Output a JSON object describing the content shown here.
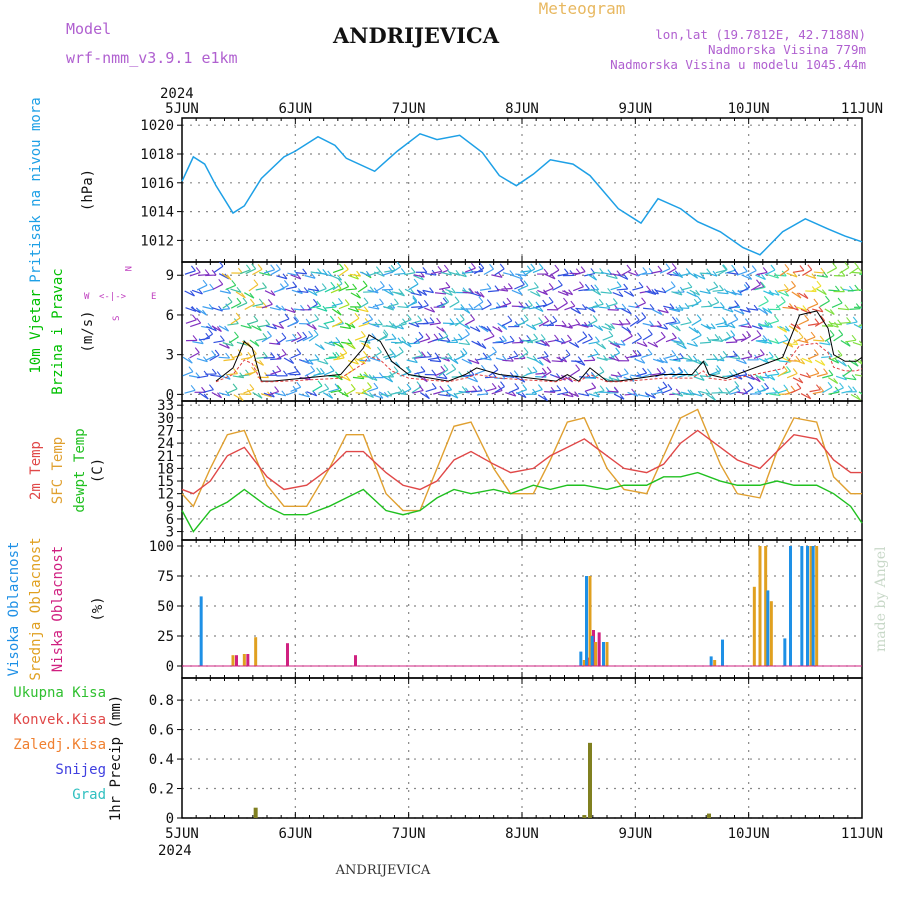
{
  "header": {
    "model_label": "Model",
    "model_value": "wrf-nmm_v3.9.1  e1km",
    "station": "ANDRIJEVICA",
    "meteogram": "Meteogram",
    "coords": "lon,lat (19.7812E, 42.7188N)",
    "altitude": "Nadmorska Visina 779m",
    "model_altitude": "Nadmorska Visina u modelu 1045.44m"
  },
  "footer": {
    "station": "ANDRIJEVICA"
  },
  "watermark": "made by Angel",
  "x_axis": {
    "year": "2024",
    "ticks": [
      "5JUN",
      "6JUN",
      "7JUN",
      "8JUN",
      "9JUN",
      "10JUN",
      "11JUN"
    ]
  },
  "compass": {
    "n": "N",
    "w": "W",
    "e": "E",
    "s": "S",
    "arrows_row": "<-|->",
    "down": "<",
    "up": ">"
  },
  "colors": {
    "pressure": "#1ea0e6",
    "wind_label": "#00c000",
    "wind_dir_label": "#c040c0",
    "temp2m": "#e04848",
    "sfc": "#e0a030",
    "dewpt": "#20c020",
    "cloud_high": "#1e90e6",
    "cloud_mid": "#e0a020",
    "cloud_low": "#d02080",
    "precip": "#808020"
  },
  "panels": {
    "pressure": {
      "labels": [
        "Pritisak na nivou mora"
      ],
      "unit": "(hPa)",
      "ticks": [
        "1012",
        "1014",
        "1016",
        "1018",
        "1020"
      ]
    },
    "wind": {
      "labels": [
        "10m Vjetar",
        "Brzina i Pravac"
      ],
      "unit": "(m/s)",
      "ticks": [
        "0",
        "3",
        "6",
        "9"
      ]
    },
    "temp": {
      "labels": [
        "2m Temp",
        "SFC Temp",
        "dewpt Temp"
      ],
      "unit": "(C)",
      "ticks": [
        "3",
        "6",
        "9",
        "12",
        "15",
        "18",
        "21",
        "24",
        "27",
        "30",
        "33"
      ]
    },
    "cloud": {
      "labels": [
        "Visoka Oblacnost",
        "Srednja Oblacnost",
        "Niska Oblacnost"
      ],
      "unit": "(%)",
      "ticks": [
        "0",
        "25",
        "50",
        "75",
        "100"
      ]
    },
    "precip": {
      "labels": [
        "Ukupna Kisa",
        "Konvek.Kisa",
        "Zaledj.Kisa",
        "Snijeg",
        "Grad"
      ],
      "unit": "1hr Precip (mm)",
      "ticks": [
        "0",
        "0.2",
        "0.4",
        "0.6",
        "0.8"
      ]
    }
  },
  "chart_data": [
    {
      "type": "line",
      "ylabel": "Pritisak na nivou mora (hPa)",
      "ylim": [
        1010.5,
        1020.5
      ],
      "x": [
        0,
        0.1,
        0.2,
        0.3,
        0.45,
        0.55,
        0.7,
        0.9,
        1.0,
        1.2,
        1.35,
        1.45,
        1.7,
        1.9,
        2.1,
        2.25,
        2.45,
        2.65,
        2.8,
        2.95,
        3.1,
        3.25,
        3.45,
        3.6,
        3.85,
        4.05,
        4.2,
        4.4,
        4.55,
        4.75,
        4.95,
        5.1,
        5.3,
        5.5,
        5.7,
        5.85,
        6.0
      ],
      "series": [
        {
          "values": [
            1016.1,
            1017.8,
            1017.3,
            1015.8,
            1013.9,
            1014.4,
            1016.3,
            1017.8,
            1018.2,
            1019.2,
            1018.6,
            1017.7,
            1016.8,
            1018.2,
            1019.4,
            1019.0,
            1019.3,
            1018.1,
            1016.5,
            1015.8,
            1016.6,
            1017.6,
            1017.3,
            1016.5,
            1014.2,
            1013.2,
            1014.9,
            1014.2,
            1013.3,
            1012.6,
            1011.5,
            1011.0,
            1012.6,
            1013.5,
            1012.8,
            1012.3,
            1011.9
          ]
        }
      ]
    },
    {
      "type": "line",
      "ylabel": "10m Vjetar Brzina i Pravac (m/s)",
      "ylim": [
        0,
        10
      ],
      "x": [
        0.3,
        0.45,
        0.55,
        0.62,
        0.7,
        0.8,
        1.4,
        1.6,
        1.65,
        1.75,
        1.85,
        2.0,
        2.35,
        2.5,
        2.6,
        2.8,
        3.3,
        3.4,
        3.5,
        3.6,
        3.75,
        3.85,
        4.25,
        4.5,
        4.6,
        4.65,
        4.8,
        5.3,
        5.45,
        5.6,
        5.7,
        5.75,
        5.85,
        5.95,
        6.0
      ],
      "series": [
        {
          "values": [
            1.0,
            2.0,
            4.0,
            3.5,
            1.0,
            1.0,
            1.5,
            3.5,
            4.5,
            4.0,
            2.5,
            1.5,
            1.0,
            1.5,
            2.0,
            1.5,
            1.0,
            1.5,
            1.0,
            2.0,
            1.0,
            1.0,
            1.5,
            1.5,
            2.5,
            1.5,
            1.2,
            2.8,
            6.0,
            6.3,
            5.0,
            3.0,
            2.5,
            2.5,
            2.8
          ]
        }
      ]
    },
    {
      "type": "line",
      "ylabel": "2m Temp / SFC Temp / dewpt Temp (C)",
      "ylim": [
        1,
        34
      ],
      "x": [
        0,
        0.1,
        0.25,
        0.4,
        0.55,
        0.75,
        0.9,
        1.1,
        1.3,
        1.45,
        1.6,
        1.8,
        1.95,
        2.1,
        2.25,
        2.4,
        2.55,
        2.75,
        2.9,
        3.1,
        3.25,
        3.4,
        3.55,
        3.75,
        3.9,
        4.1,
        4.25,
        4.4,
        4.55,
        4.75,
        4.9,
        5.1,
        5.25,
        5.4,
        5.6,
        5.75,
        5.9,
        6.0
      ],
      "series": [
        {
          "name": "2m Temp",
          "values": [
            13,
            12,
            15,
            21,
            23,
            16,
            13,
            14,
            18,
            22,
            22,
            17,
            14,
            13,
            15,
            20,
            22,
            19,
            17,
            18,
            21,
            23,
            25,
            21,
            18,
            17,
            19,
            24,
            27,
            23,
            20,
            18,
            22,
            26,
            25,
            20,
            17,
            17
          ]
        },
        {
          "name": "SFC Temp",
          "values": [
            12,
            9,
            18,
            26,
            27,
            14,
            9,
            9,
            18,
            26,
            26,
            12,
            8,
            8,
            18,
            28,
            29,
            18,
            12,
            12,
            20,
            29,
            30,
            18,
            13,
            12,
            21,
            30,
            32,
            19,
            12,
            11,
            22,
            30,
            29,
            16,
            12,
            12
          ]
        },
        {
          "name": "dewpt Temp",
          "values": [
            8,
            3,
            8,
            10,
            13,
            9,
            7,
            7,
            9,
            11,
            13,
            8,
            7,
            8,
            11,
            13,
            12,
            13,
            12,
            14,
            13,
            14,
            14,
            13,
            14,
            14,
            16,
            16,
            17,
            15,
            14,
            14,
            15,
            14,
            14,
            12,
            9,
            5
          ]
        }
      ]
    },
    {
      "type": "bar",
      "ylabel": "Visoka / Srednja / Niska Oblacnost (%)",
      "ylim": [
        0,
        100
      ],
      "x": [
        0.2,
        0.45,
        0.55,
        0.65,
        0.9,
        1.5,
        3.55,
        3.6,
        3.65,
        3.75,
        4.7,
        4.8,
        5.05,
        5.1,
        5.15,
        5.2,
        5.35,
        5.4,
        5.5,
        5.55,
        5.6
      ],
      "series": [
        {
          "name": "Visoka Oblacnost",
          "values": [
            58,
            0,
            0,
            0,
            0,
            0,
            12,
            75,
            25,
            20,
            8,
            22,
            0,
            0,
            0,
            63,
            23,
            100,
            100,
            100,
            100
          ]
        },
        {
          "name": "Srednja Oblacnost",
          "values": [
            0,
            9,
            10,
            24,
            0,
            0,
            5,
            75,
            20,
            20,
            5,
            0,
            66,
            100,
            100,
            54,
            0,
            0,
            0,
            100,
            100
          ]
        },
        {
          "name": "Niska Oblacnost",
          "values": [
            0,
            9,
            10,
            0,
            19,
            9,
            7,
            30,
            28,
            0,
            0,
            0,
            0,
            0,
            0,
            0,
            0,
            0,
            0,
            0,
            0
          ]
        }
      ]
    },
    {
      "type": "bar",
      "ylabel": "1hr Precip (mm)",
      "ylim": [
        0,
        0.95
      ],
      "x": [
        0.65,
        3.55,
        3.6,
        4.65
      ],
      "series": [
        {
          "name": "Ukupna Kisa",
          "values": [
            0.07,
            0.02,
            0.51,
            0.03
          ]
        }
      ]
    }
  ]
}
